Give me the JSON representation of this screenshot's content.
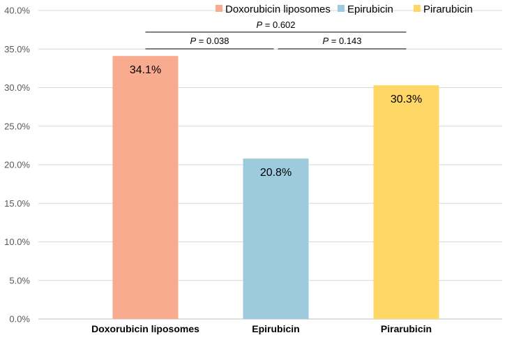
{
  "chart_data": {
    "type": "bar",
    "categories": [
      "Doxorubicin liposomes",
      "Epirubicin",
      "Pirarubicin"
    ],
    "values": [
      34.1,
      20.8,
      30.3
    ],
    "data_labels": [
      "34.1%",
      "20.8%",
      "30.3%"
    ],
    "colors": [
      "#F8AB8E",
      "#9DCBDD",
      "#FFD766"
    ],
    "ylim": [
      0,
      40
    ],
    "y_ticks": [
      0,
      5,
      10,
      15,
      20,
      25,
      30,
      35,
      40
    ],
    "y_tick_labels": [
      "0.0%",
      "5.0%",
      "10.0%",
      "15.0%",
      "20.0%",
      "25.0%",
      "30.0%",
      "35.0%",
      "40.0%"
    ],
    "grid": true,
    "legend": {
      "position": "top-right",
      "entries": [
        "Doxorubicin liposomes",
        "Epirubicin",
        "Pirarubicin"
      ]
    },
    "comparisons": [
      {
        "from": 0,
        "to": 2,
        "italic": "P",
        "text": " = 0.602"
      },
      {
        "from": 0,
        "to": 1,
        "italic": "P",
        "text": " = 0.038"
      },
      {
        "from": 1,
        "to": 2,
        "italic": "P",
        "text": " = 0.143"
      }
    ],
    "title": "",
    "xlabel": "",
    "ylabel": ""
  }
}
